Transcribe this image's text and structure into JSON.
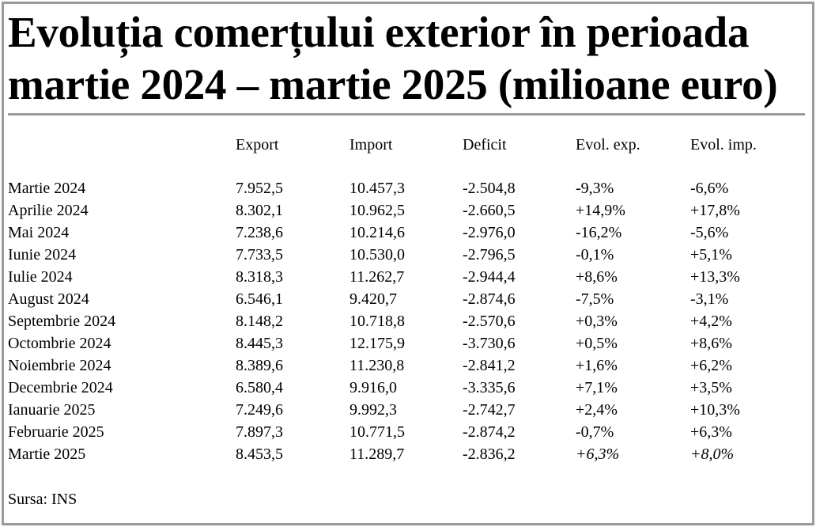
{
  "title": {
    "line1": "Evoluția comerțului exterior în perioada",
    "line2": "martie 2024 – martie 2025 (milioane euro)"
  },
  "source": "Sursa: INS",
  "chart_data": {
    "type": "table",
    "title": "Evoluția comerțului exterior în perioada martie 2024 – martie 2025 (milioane euro)",
    "columns": [
      "",
      "Export",
      "Import",
      "Deficit",
      "Evol. exp.",
      "Evol. imp."
    ],
    "rows": [
      {
        "period": "Martie 2024",
        "export": "7.952,5",
        "import": "10.457,3",
        "deficit": "-2.504,8",
        "evol_exp": "-9,3%",
        "evol_imp": "-6,6%"
      },
      {
        "period": "Aprilie 2024",
        "export": "8.302,1",
        "import": "10.962,5",
        "deficit": "-2.660,5",
        "evol_exp": "+14,9%",
        "evol_imp": "+17,8%"
      },
      {
        "period": "Mai 2024",
        "export": "7.238,6",
        "import": "10.214,6",
        "deficit": "-2.976,0",
        "evol_exp": "-16,2%",
        "evol_imp": "-5,6%"
      },
      {
        "period": "Iunie 2024",
        "export": "7.733,5",
        "import": "10.530,0",
        "deficit": "-2.796,5",
        "evol_exp": "-0,1%",
        "evol_imp": "+5,1%"
      },
      {
        "period": "Iulie 2024",
        "export": "8.318,3",
        "import": "11.262,7",
        "deficit": "-2.944,4",
        "evol_exp": "+8,6%",
        "evol_imp": "+13,3%"
      },
      {
        "period": "August 2024",
        "export": "6.546,1",
        "import": "9.420,7",
        "deficit": "-2.874,6",
        "evol_exp": "-7,5%",
        "evol_imp": "-3,1%"
      },
      {
        "period": "Septembrie 2024",
        "export": "8.148,2",
        "import": "10.718,8",
        "deficit": "-2.570,6",
        "evol_exp": "+0,3%",
        "evol_imp": "+4,2%"
      },
      {
        "period": "Octombrie 2024",
        "export": "8.445,3",
        "import": "12.175,9",
        "deficit": "-3.730,6",
        "evol_exp": "+0,5%",
        "evol_imp": "+8,6%"
      },
      {
        "period": "Noiembrie 2024",
        "export": "8.389,6",
        "import": "11.230,8",
        "deficit": "-2.841,2",
        "evol_exp": "+1,6%",
        "evol_imp": "+6,2%"
      },
      {
        "period": "Decembrie 2024",
        "export": "6.580,4",
        "import": "9.916,0",
        "deficit": "-3.335,6",
        "evol_exp": "+7,1%",
        "evol_imp": "+3,5%"
      },
      {
        "period": "Ianuarie 2025",
        "export": "7.249,6",
        "import": "9.992,3",
        "deficit": "-2.742,7",
        "evol_exp": "+2,4%",
        "evol_imp": "+10,3%"
      },
      {
        "period": "Februarie 2025",
        "export": "7.897,3",
        "import": "10.771,5",
        "deficit": "-2.874,2",
        "evol_exp": "-0,7%",
        "evol_imp": "+6,3%"
      },
      {
        "period": "Martie 2025",
        "export": "8.453,5",
        "import": "11.289,7",
        "deficit": "-2.836,2",
        "evol_exp": "+6,3%",
        "evol_imp": "+8,0%",
        "emphasized": [
          "evol_exp",
          "evol_imp"
        ]
      }
    ]
  }
}
